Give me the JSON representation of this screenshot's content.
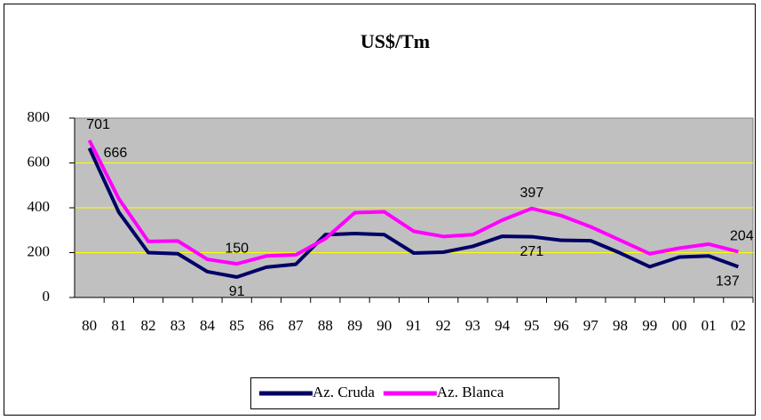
{
  "chart_data": {
    "type": "line",
    "title": "US$/Tm",
    "categories": [
      "80",
      "81",
      "82",
      "83",
      "84",
      "85",
      "86",
      "87",
      "88",
      "89",
      "90",
      "91",
      "92",
      "93",
      "94",
      "95",
      "96",
      "97",
      "98",
      "99",
      "00",
      "01",
      "02"
    ],
    "series": [
      {
        "name": "Az. Cruda",
        "color": "#000066",
        "values": [
          666,
          380,
          200,
          195,
          115,
          91,
          135,
          148,
          280,
          285,
          280,
          198,
          202,
          228,
          273,
          271,
          255,
          253,
          198,
          137,
          180,
          185,
          137
        ],
        "value_labels": [
          "666",
          null,
          null,
          null,
          null,
          "91",
          null,
          null,
          null,
          null,
          null,
          null,
          null,
          null,
          null,
          "271",
          null,
          null,
          null,
          null,
          null,
          null,
          "137"
        ]
      },
      {
        "name": "Az. Blanca",
        "color": "#ff00ff",
        "values": [
          701,
          440,
          250,
          252,
          170,
          150,
          185,
          190,
          262,
          378,
          382,
          295,
          272,
          280,
          345,
          397,
          365,
          315,
          255,
          195,
          220,
          238,
          204
        ],
        "value_labels": [
          "701",
          null,
          null,
          null,
          null,
          "150",
          null,
          null,
          null,
          null,
          null,
          null,
          null,
          null,
          null,
          "397",
          null,
          null,
          null,
          null,
          null,
          null,
          "204"
        ]
      }
    ],
    "ylim": [
      0,
      800
    ],
    "yticks": [
      0,
      200,
      400,
      600,
      800
    ],
    "grid": true,
    "legend": "bottom"
  }
}
